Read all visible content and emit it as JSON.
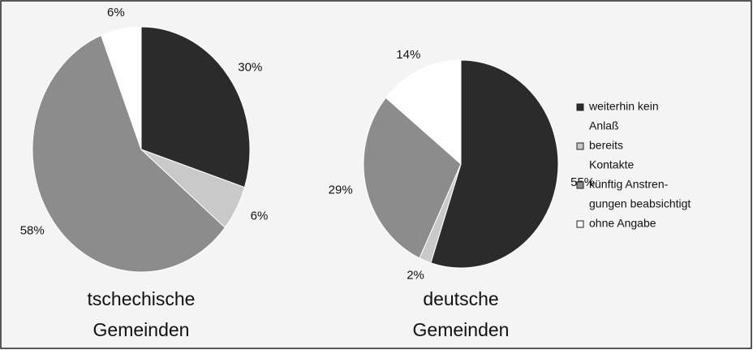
{
  "chart_data": [
    {
      "type": "pie",
      "title": [
        "tschechische",
        "Gemeinden"
      ],
      "values": [
        30,
        6,
        58,
        6
      ],
      "value_labels": [
        "30%",
        "6%",
        "58%",
        "6%"
      ]
    },
    {
      "type": "pie",
      "title": [
        "deutsche",
        "Gemeinden"
      ],
      "values": [
        55,
        2,
        29,
        14
      ],
      "value_labels": [
        "55%",
        "2%",
        "29%",
        "14%"
      ]
    }
  ],
  "legend": {
    "labels": [
      [
        "weiterhin kein",
        "Anlaß"
      ],
      [
        "bereits",
        "Kontakte"
      ],
      [
        "künftig Anstren-",
        "gungen beabsichtigt"
      ],
      [
        "ohne Angabe"
      ]
    ],
    "colors": [
      "#2b2b2b",
      "#c9c9c9",
      "#8c8c8c",
      "#ffffff"
    ]
  }
}
